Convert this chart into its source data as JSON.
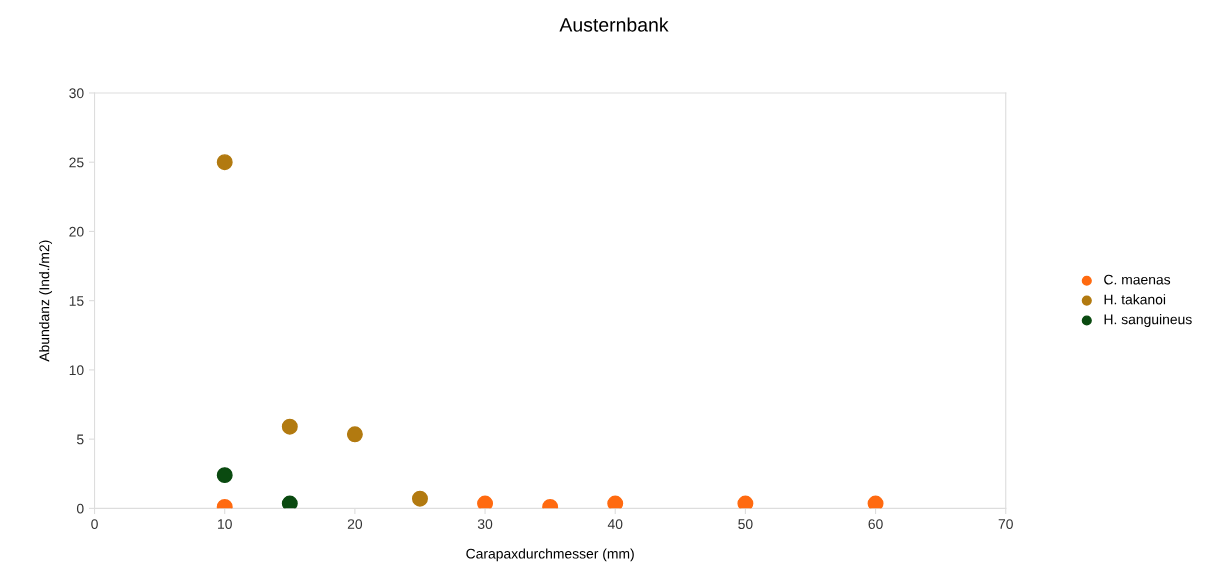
{
  "chart_data": {
    "type": "scatter",
    "title": "Austernbank",
    "xlabel": "Carapaxdurchmesser (mm)",
    "ylabel": "Abundanz (Ind./m2)",
    "xlim": [
      0,
      70
    ],
    "xticks": [
      0,
      10,
      20,
      30,
      40,
      50,
      60,
      70
    ],
    "ylim": [
      0,
      30
    ],
    "yticks": [
      0,
      5,
      10,
      15,
      20,
      25,
      30
    ],
    "grid": false,
    "legend": "right",
    "marker": "circle",
    "series": [
      {
        "name": "C. maenas",
        "color": "#ff6a10",
        "x": [
          10,
          30,
          35,
          40,
          50,
          60
        ],
        "values": [
          0.1,
          0.35,
          0.1,
          0.35,
          0.35,
          0.35
        ]
      },
      {
        "name": "H. takanoi",
        "color": "#b27a10",
        "x": [
          10,
          15,
          20,
          25
        ],
        "values": [
          25,
          5.9,
          5.35,
          0.7
        ]
      },
      {
        "name": "H. sanguineus",
        "color": "#0a4a10",
        "x": [
          10,
          15
        ],
        "values": [
          2.4,
          0.35
        ]
      }
    ]
  }
}
